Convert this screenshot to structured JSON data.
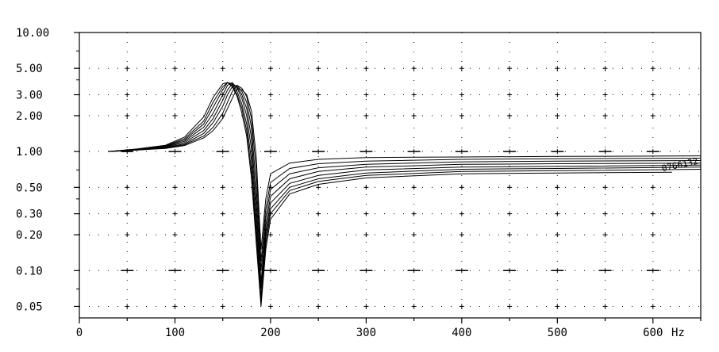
{
  "chart_data": {
    "type": "line",
    "title": "",
    "xlabel": "",
    "ylabel": "",
    "x_unit_label": "Hz",
    "xlim": [
      0,
      650
    ],
    "ylim": [
      0.04,
      10.0
    ],
    "yscale": "log",
    "x_ticks": [
      0,
      100,
      200,
      300,
      400,
      500,
      600
    ],
    "y_ticks": [
      {
        "value": 10.0,
        "label": "10.00"
      },
      {
        "value": 5.0,
        "label": "5.00"
      },
      {
        "value": 3.0,
        "label": "3.00"
      },
      {
        "value": 2.0,
        "label": "2.00"
      },
      {
        "value": 1.0,
        "label": "1.00"
      },
      {
        "value": 0.5,
        "label": "0.50"
      },
      {
        "value": 0.3,
        "label": "0.30"
      },
      {
        "value": 0.2,
        "label": "0.20"
      },
      {
        "value": 0.1,
        "label": "0.10"
      },
      {
        "value": 0.05,
        "label": "0.05"
      }
    ],
    "grid": "dotted",
    "curve_tag_text": "0766132",
    "line_color": "#000000",
    "series": [
      {
        "x": [
          30,
          60,
          90,
          110,
          130,
          140,
          150,
          155,
          160,
          165,
          170,
          175,
          180,
          185,
          190,
          195,
          200,
          220,
          250,
          300,
          400,
          500,
          650
        ],
        "values": [
          1.0,
          1.03,
          1.06,
          1.12,
          1.3,
          1.5,
          1.9,
          2.3,
          2.8,
          3.4,
          3.3,
          3.0,
          2.2,
          0.9,
          0.15,
          0.4,
          0.65,
          0.8,
          0.86,
          0.89,
          0.9,
          0.91,
          0.92
        ]
      },
      {
        "x": [
          30,
          60,
          90,
          110,
          130,
          140,
          150,
          155,
          160,
          165,
          170,
          175,
          180,
          185,
          190,
          195,
          200,
          220,
          250,
          300,
          400,
          500,
          650
        ],
        "values": [
          1.0,
          1.03,
          1.07,
          1.14,
          1.35,
          1.6,
          2.1,
          2.6,
          3.2,
          3.6,
          3.4,
          2.9,
          1.9,
          0.7,
          0.12,
          0.33,
          0.55,
          0.72,
          0.79,
          0.83,
          0.86,
          0.87,
          0.88
        ]
      },
      {
        "x": [
          30,
          60,
          90,
          110,
          130,
          140,
          150,
          155,
          160,
          165,
          170,
          175,
          180,
          185,
          190,
          195,
          200,
          220,
          250,
          300,
          400,
          500,
          650
        ],
        "values": [
          1.0,
          1.03,
          1.08,
          1.16,
          1.42,
          1.75,
          2.4,
          3.0,
          3.5,
          3.6,
          3.2,
          2.6,
          1.6,
          0.5,
          0.1,
          0.28,
          0.48,
          0.65,
          0.73,
          0.78,
          0.82,
          0.83,
          0.84
        ]
      },
      {
        "x": [
          30,
          60,
          90,
          110,
          130,
          140,
          150,
          155,
          160,
          165,
          170,
          175,
          180,
          185,
          190,
          195,
          200,
          220,
          250,
          300,
          400,
          500,
          650
        ],
        "values": [
          1.0,
          1.03,
          1.09,
          1.19,
          1.5,
          1.9,
          2.7,
          3.3,
          3.7,
          3.5,
          3.0,
          2.3,
          1.3,
          0.38,
          0.08,
          0.24,
          0.42,
          0.59,
          0.68,
          0.74,
          0.78,
          0.79,
          0.8
        ]
      },
      {
        "x": [
          30,
          60,
          90,
          110,
          130,
          140,
          150,
          155,
          160,
          165,
          170,
          175,
          180,
          185,
          190,
          195,
          200,
          220,
          250,
          300,
          400,
          500,
          650
        ],
        "values": [
          1.0,
          1.04,
          1.1,
          1.22,
          1.6,
          2.1,
          3.0,
          3.6,
          3.8,
          3.4,
          2.8,
          2.0,
          1.05,
          0.3,
          0.07,
          0.21,
          0.37,
          0.54,
          0.63,
          0.7,
          0.74,
          0.75,
          0.77
        ]
      },
      {
        "x": [
          30,
          60,
          90,
          110,
          130,
          140,
          150,
          155,
          160,
          165,
          170,
          175,
          180,
          185,
          190,
          195,
          200,
          220,
          250,
          300,
          400,
          500,
          650
        ],
        "values": [
          1.0,
          1.04,
          1.11,
          1.25,
          1.7,
          2.35,
          3.3,
          3.8,
          3.7,
          3.2,
          2.5,
          1.7,
          0.85,
          0.24,
          0.06,
          0.19,
          0.33,
          0.5,
          0.59,
          0.66,
          0.71,
          0.72,
          0.74
        ]
      },
      {
        "x": [
          30,
          60,
          90,
          110,
          130,
          140,
          150,
          155,
          160,
          165,
          170,
          175,
          180,
          185,
          190,
          195,
          200,
          220,
          250,
          300,
          400,
          500,
          650
        ],
        "values": [
          1.0,
          1.04,
          1.12,
          1.28,
          1.8,
          2.6,
          3.5,
          3.8,
          3.6,
          3.0,
          2.3,
          1.5,
          0.7,
          0.2,
          0.055,
          0.17,
          0.3,
          0.47,
          0.56,
          0.63,
          0.68,
          0.69,
          0.71
        ]
      },
      {
        "x": [
          30,
          60,
          90,
          110,
          130,
          140,
          150,
          155,
          160,
          165,
          170,
          175,
          180,
          185,
          190,
          195,
          200,
          220,
          250,
          300,
          400,
          500,
          620
        ],
        "values": [
          1.0,
          1.05,
          1.13,
          1.32,
          1.95,
          2.85,
          3.7,
          3.8,
          3.5,
          2.9,
          2.1,
          1.35,
          0.6,
          0.17,
          0.05,
          0.15,
          0.27,
          0.44,
          0.53,
          0.6,
          0.65,
          0.66,
          0.67
        ]
      }
    ]
  }
}
